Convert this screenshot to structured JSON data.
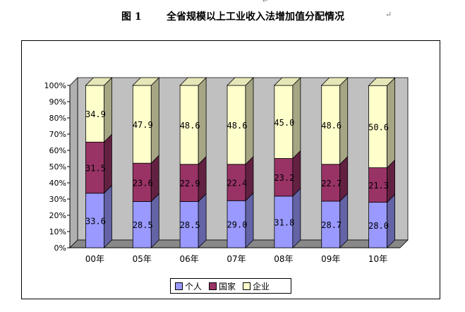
{
  "header": {
    "top_mark": "↵",
    "figure_label": "图 1",
    "title": "全省规模以上工业收入法增加值分配情况",
    "return_mark": "↵"
  },
  "chart_data": {
    "type": "bar",
    "stacked": true,
    "percent": true,
    "categories": [
      "00年",
      "05年",
      "06年",
      "07年",
      "08年",
      "09年",
      "10年"
    ],
    "series": [
      {
        "name": "个人",
        "color": "#9999ff",
        "values": [
          33.6,
          28.5,
          28.5,
          29.0,
          31.8,
          28.7,
          28.0
        ],
        "labels": [
          "33.6",
          "28.5",
          "28.5",
          "29.0",
          "31.8",
          "28.7",
          "28.0"
        ]
      },
      {
        "name": "国家",
        "color": "#993366",
        "values": [
          31.5,
          23.6,
          22.9,
          22.4,
          23.2,
          22.7,
          21.3
        ],
        "labels": [
          "31.5",
          "23.6",
          "22.9",
          "22.4",
          "23.2",
          "22.7",
          "21.3"
        ]
      },
      {
        "name": "企业",
        "color": "#ffffcc",
        "values": [
          34.9,
          47.9,
          48.6,
          48.6,
          45.0,
          48.6,
          50.6
        ],
        "labels": [
          "34.9",
          "47.9",
          "48.6",
          "48.6",
          "45.0",
          "48.6",
          "50.6"
        ]
      }
    ],
    "yticks": [
      "0%",
      "10%",
      "20%",
      "30%",
      "40%",
      "50%",
      "60%",
      "70%",
      "80%",
      "90%",
      "100%"
    ],
    "ylim": [
      0,
      100
    ],
    "grid": false,
    "legend_position": "bottom",
    "three_d": true
  }
}
